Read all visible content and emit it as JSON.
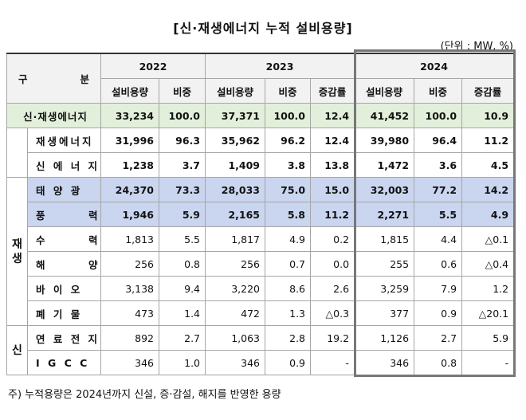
{
  "title": "[신·재생에너지 누적 설비용량]",
  "unit": "(단위 : MW, %)",
  "header": {
    "corner": [
      "구",
      "분"
    ],
    "years": [
      {
        "year": "2022",
        "cols": [
          "설비용량",
          "비중"
        ]
      },
      {
        "year": "2023",
        "cols": [
          "설비용량",
          "비중",
          "증감률"
        ]
      },
      {
        "year": "2024",
        "cols": [
          "설비용량",
          "비중",
          "증감률"
        ]
      }
    ]
  },
  "total": {
    "name": "신·재생에너지",
    "cells": [
      "33,234",
      "100.0",
      "37,371",
      "100.0",
      "12.4",
      "41,452",
      "100.0",
      "10.9"
    ]
  },
  "subtotals": [
    {
      "name": "재생에너지",
      "cells": [
        "31,996",
        "96.3",
        "35,962",
        "96.2",
        "12.4",
        "39,980",
        "96.4",
        "11.2"
      ]
    },
    {
      "name": "신 에 너 지",
      "cells": [
        "1,238",
        "3.7",
        "1,409",
        "3.8",
        "13.8",
        "1,472",
        "3.6",
        "4.5"
      ]
    }
  ],
  "groups": [
    {
      "label": "재생",
      "rows": [
        {
          "name": "태 양 광",
          "highlight": true,
          "cells": [
            "24,370",
            "73.3",
            "28,033",
            "75.0",
            "15.0",
            "32,003",
            "77.2",
            "14.2"
          ]
        },
        {
          "name": "풍       력",
          "highlight": true,
          "cells": [
            "1,946",
            "5.9",
            "2,165",
            "5.8",
            "11.2",
            "2,271",
            "5.5",
            "4.9"
          ]
        },
        {
          "name": "수       력",
          "highlight": false,
          "cells": [
            "1,813",
            "5.5",
            "1,817",
            "4.9",
            "0.2",
            "1,815",
            "4.4",
            "△0.1"
          ]
        },
        {
          "name": "해       양",
          "highlight": false,
          "cells": [
            "256",
            "0.8",
            "256",
            "0.7",
            "0.0",
            "255",
            "0.6",
            "△0.4"
          ]
        },
        {
          "name": "바 이 오",
          "highlight": false,
          "cells": [
            "3,138",
            "9.4",
            "3,220",
            "8.6",
            "2.6",
            "3,259",
            "7.9",
            "1.2"
          ]
        },
        {
          "name": "폐 기 물",
          "highlight": false,
          "cells": [
            "473",
            "1.4",
            "472",
            "1.3",
            "△0.3",
            "377",
            "0.9",
            "△20.1"
          ]
        }
      ]
    },
    {
      "label": "신",
      "rows": [
        {
          "name": "연 료 전 지",
          "highlight": false,
          "cells": [
            "892",
            "2.7",
            "1,063",
            "2.8",
            "19.2",
            "1,126",
            "2.7",
            "5.9"
          ]
        },
        {
          "name": "I G C C",
          "highlight": false,
          "cells": [
            "346",
            "1.0",
            "346",
            "0.9",
            "-",
            "346",
            "0.8",
            "-"
          ]
        }
      ]
    }
  ],
  "note": "주) 누적용량은 2024년까지 신설, 증·감설, 해지를 반영한 용량"
}
